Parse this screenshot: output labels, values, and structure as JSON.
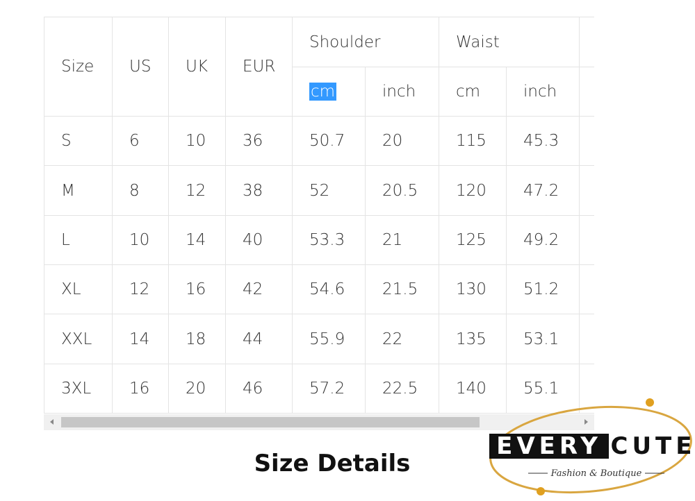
{
  "table": {
    "header": {
      "columns": [
        "Size",
        "US",
        "UK",
        "EUR"
      ],
      "groups": [
        "Shoulder",
        "Waist"
      ],
      "units": [
        "cm",
        "inch",
        "cm",
        "inch"
      ]
    },
    "rows": [
      [
        "S",
        "6",
        "10",
        "36",
        "50.7",
        "20",
        "115",
        "45.3"
      ],
      [
        "M",
        "8",
        "12",
        "38",
        "52",
        "20.5",
        "120",
        "47.2"
      ],
      [
        "L",
        "10",
        "14",
        "40",
        "53.3",
        "21",
        "125",
        "49.2"
      ],
      [
        "XL",
        "12",
        "16",
        "42",
        "54.6",
        "21.5",
        "130",
        "51.2"
      ],
      [
        "XXL",
        "14",
        "18",
        "44",
        "55.9",
        "22",
        "135",
        "53.1"
      ],
      [
        "3XL",
        "16",
        "20",
        "46",
        "57.2",
        "22.5",
        "140",
        "55.1"
      ]
    ]
  },
  "caption": "Size Details",
  "logo": {
    "word1": "EVERY",
    "word2": "CUTE",
    "tagline": "Fashion & Boutique"
  }
}
